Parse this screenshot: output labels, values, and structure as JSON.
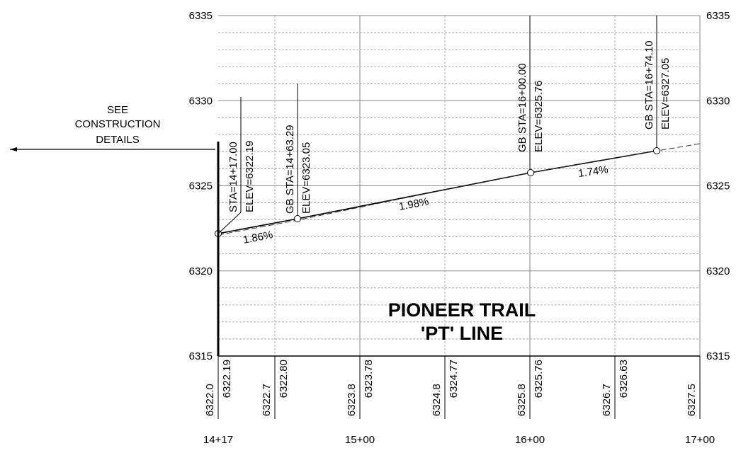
{
  "y_axis_left": [
    "6335",
    "6330",
    "6325",
    "6320",
    "6315"
  ],
  "y_axis_right": [
    "6335",
    "6330",
    "6325",
    "6320",
    "6315"
  ],
  "stations": [
    "14+17",
    "15+00",
    "16+00",
    "17+00"
  ],
  "band": [
    [
      "6322.0",
      "6322.19"
    ],
    [
      "6322.7",
      "6322.80"
    ],
    [
      "6323.8",
      "6323.78"
    ],
    [
      "6324.8",
      "6324.77"
    ],
    [
      "6325.8",
      "6325.76"
    ],
    [
      "6326.7",
      "6326.63"
    ],
    [
      "6327.5"
    ]
  ],
  "callouts": [
    [
      "STA=14+17.00",
      "ELEV=6322.19"
    ],
    [
      "GB  STA=14+63.29",
      "ELEV=6323.05"
    ],
    [
      "GB  STA=16+00.00",
      "ELEV=6325.76"
    ],
    [
      "GB  STA=16+74.10",
      "ELEV=6327.05"
    ]
  ],
  "grades": [
    "1.86%",
    "1.98%",
    "1.74%"
  ],
  "title": [
    "PIONEER  TRAIL",
    "'PT'  LINE"
  ],
  "note": [
    "SEE",
    "CONSTRUCTION",
    "DETAILS"
  ]
}
